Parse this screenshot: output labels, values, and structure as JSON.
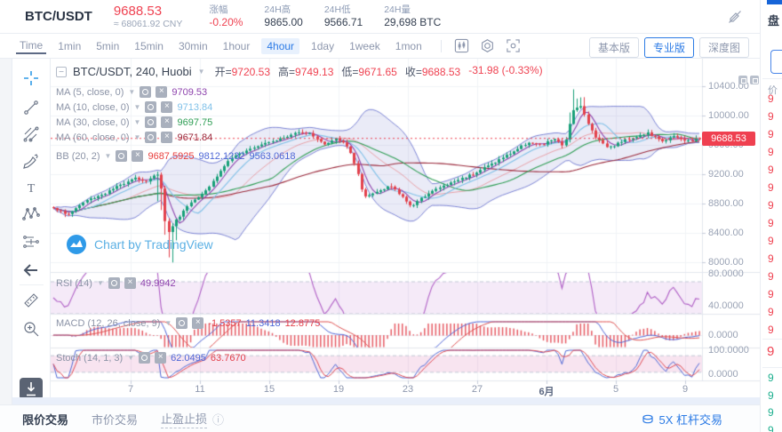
{
  "header": {
    "symbol": "BTC/USDT",
    "price": "9688.53",
    "price_cny": "≈ 68061.92 CNY",
    "stats": [
      {
        "label": "涨幅",
        "value": "-0.20%"
      },
      {
        "label": "24H高",
        "value": "9865.00"
      },
      {
        "label": "24H低",
        "value": "9566.71"
      },
      {
        "label": "24H量",
        "value": "29,698 BTC"
      }
    ]
  },
  "toolbar": {
    "timeframes": [
      "Time",
      "1min",
      "5min",
      "15min",
      "30min",
      "1hour",
      "4hour",
      "1day",
      "1week",
      "1mon"
    ],
    "active": "4hour",
    "view_buttons": [
      "基本版",
      "专业版",
      "深度图"
    ],
    "active_view": "专业版"
  },
  "legend": {
    "title": "BTC/USDT, 240, Huobi",
    "ohlc": [
      {
        "label": "开=",
        "value": "9720.53"
      },
      {
        "label": "高=",
        "value": "9749.13"
      },
      {
        "label": "低=",
        "value": "9671.65"
      },
      {
        "label": "收=",
        "value": "9688.53"
      },
      {
        "label": "",
        "value": "-31.98 (-0.33%)"
      }
    ],
    "indicators": [
      {
        "label": "MA (5, close, 0)",
        "values": [
          {
            "text": "9709.53",
            "color": "#8e44ad"
          }
        ]
      },
      {
        "label": "MA (10, close, 0)",
        "values": [
          {
            "text": "9713.84",
            "color": "#7fc0e8"
          }
        ]
      },
      {
        "label": "MA (30, close, 0)",
        "values": [
          {
            "text": "9697.75",
            "color": "#2f9e55"
          }
        ]
      },
      {
        "label": "MA (60, close, 0)",
        "values": [
          {
            "text": "9671.84",
            "color": "#9c2b3d"
          }
        ]
      },
      {
        "label": "BB (20, 2)",
        "values": [
          {
            "text": "9687.5925",
            "color": "#e8403f"
          },
          {
            "text": "9812.1232",
            "color": "#4f68d6"
          },
          {
            "text": "9563.0618",
            "color": "#4f68d6"
          }
        ]
      }
    ],
    "watermark": "Chart by TradingView"
  },
  "axes": {
    "price": [
      "10400.00",
      "10000.00",
      "9600.00",
      "9200.00",
      "8800.00",
      "8400.00",
      "8000.00"
    ],
    "price_badge": "9688.53",
    "time": [
      "7",
      "11",
      "15",
      "19",
      "23",
      "27",
      "6月",
      "5",
      "9"
    ],
    "rsi": [
      "80.0000",
      "40.0000"
    ],
    "macd": [
      "0.0000"
    ],
    "stoch": [
      "100.0000",
      "0.0000"
    ]
  },
  "panes": {
    "rsi": {
      "label": "RSI (14)",
      "values": [
        {
          "text": "49.9942",
          "color": "#8e44ad"
        }
      ]
    },
    "macd": {
      "label": "MACD (12, 26, close, 9)",
      "values": [
        {
          "text": "-1.5357",
          "color": "#e3414b"
        },
        {
          "text": "11.3418",
          "color": "#4f68d6"
        },
        {
          "text": "12.8775",
          "color": "#e3414b"
        }
      ]
    },
    "stoch": {
      "label": "Stoch (14, 1, 3)",
      "values": [
        {
          "text": "62.0495",
          "color": "#4f68d6"
        },
        {
          "text": "63.7670",
          "color": "#e3414b"
        }
      ]
    }
  },
  "bottom": {
    "tabs": [
      "限价交易",
      "市价交易",
      "止盈止损"
    ],
    "active": "限价交易",
    "leverage": "5X 杠杆交易"
  },
  "order_book": {
    "tab": "盘",
    "col_header": "价",
    "asks": [
      "9",
      "9",
      "9",
      "9",
      "9",
      "9",
      "9",
      "9",
      "9",
      "9",
      "9",
      "9",
      "9",
      "9"
    ],
    "last": "9",
    "bids": [
      "9",
      "9",
      "9",
      "9"
    ]
  },
  "chart_data": {
    "type": "candlestick",
    "symbol": "BTC/USDT",
    "interval": "240",
    "exchange": "Huobi",
    "ohlc": {
      "open": 9720.53,
      "high": 9749.13,
      "low": 9671.65,
      "close": 9688.53,
      "change": -31.98,
      "change_pct": -0.33
    },
    "ma": {
      "ma5": 9709.53,
      "ma10": 9713.84,
      "ma30": 9697.75,
      "ma60": 9671.84
    },
    "bb": {
      "basis": 9687.5925,
      "upper": 9812.1232,
      "lower": 9563.0618
    },
    "rsi14": 49.9942,
    "macd": {
      "hist": -1.5357,
      "macd": 11.3418,
      "signal": 12.8775
    },
    "stoch": {
      "k": 62.0495,
      "d": 63.767
    },
    "price_axis_range": [
      8000,
      10400
    ],
    "time_ticks": [
      "7",
      "11",
      "15",
      "19",
      "23",
      "27",
      "6月",
      "5",
      "9"
    ],
    "anchors": [
      [
        0.0,
        8750
      ],
      [
        0.02,
        8640
      ],
      [
        0.05,
        8840
      ],
      [
        0.08,
        8940
      ],
      [
        0.105,
        9060
      ],
      [
        0.125,
        9160
      ],
      [
        0.145,
        9090
      ],
      [
        0.16,
        9240
      ],
      [
        0.168,
        8950
      ],
      [
        0.175,
        8350
      ],
      [
        0.185,
        8520
      ],
      [
        0.21,
        8800
      ],
      [
        0.24,
        9020
      ],
      [
        0.27,
        9380
      ],
      [
        0.3,
        9540
      ],
      [
        0.33,
        9640
      ],
      [
        0.36,
        9700
      ],
      [
        0.38,
        9790
      ],
      [
        0.4,
        9740
      ],
      [
        0.42,
        9600
      ],
      [
        0.44,
        9690
      ],
      [
        0.458,
        9540
      ],
      [
        0.47,
        9240
      ],
      [
        0.48,
        8870
      ],
      [
        0.5,
        8960
      ],
      [
        0.52,
        9050
      ],
      [
        0.54,
        8890
      ],
      [
        0.555,
        8760
      ],
      [
        0.58,
        8950
      ],
      [
        0.62,
        9100
      ],
      [
        0.65,
        9210
      ],
      [
        0.68,
        9350
      ],
      [
        0.71,
        9500
      ],
      [
        0.735,
        9640
      ],
      [
        0.755,
        9590
      ],
      [
        0.775,
        9690
      ],
      [
        0.79,
        9560
      ],
      [
        0.803,
        10060
      ],
      [
        0.815,
        10160
      ],
      [
        0.827,
        9890
      ],
      [
        0.84,
        9700
      ],
      [
        0.86,
        9560
      ],
      [
        0.88,
        9650
      ],
      [
        0.9,
        9710
      ],
      [
        0.92,
        9760
      ],
      [
        0.94,
        9650
      ],
      [
        0.96,
        9710
      ],
      [
        0.98,
        9650
      ],
      [
        1.0,
        9688.53
      ]
    ]
  }
}
